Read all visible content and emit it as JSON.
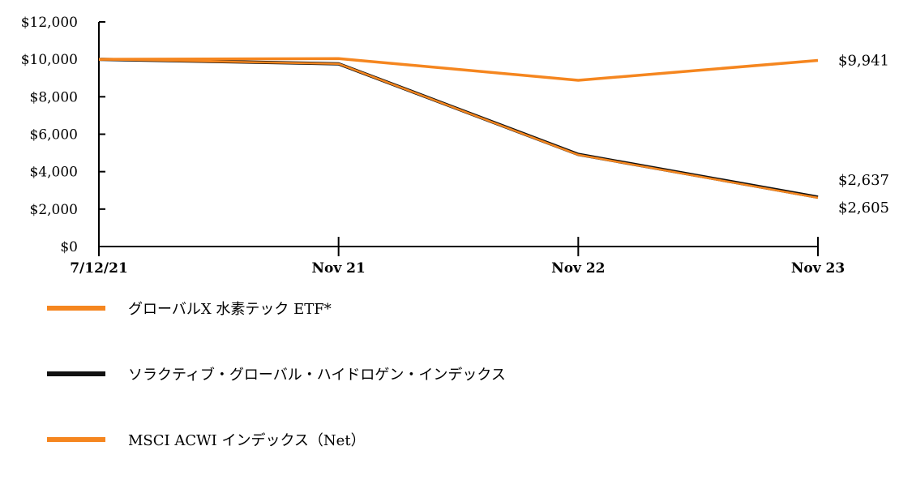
{
  "chart_data": {
    "type": "line",
    "x": [
      "7/12/21",
      "Nov 21",
      "Nov 22",
      "Nov 23"
    ],
    "ylim": [
      0,
      12000
    ],
    "yticks": [
      "$0",
      "$2,000",
      "$4,000",
      "$6,000",
      "$8,000",
      "$10,000",
      "$12,000"
    ],
    "ytick_values": [
      0,
      2000,
      4000,
      6000,
      8000,
      10000,
      12000
    ],
    "series": [
      {
        "name": "グローバルX  水素テック  ETF*",
        "values": [
          10000,
          9760,
          4900,
          2605
        ],
        "color": "#f5861f",
        "end_label": "$2,605"
      },
      {
        "name": "ソラクティブ・グローバル・ハイドロゲン・インデックス",
        "values": [
          10000,
          9760,
          4920,
          2637
        ],
        "color": "#111111",
        "end_label": "$2,637"
      },
      {
        "name": "MSCI ACWI インデックス（Net）",
        "values": [
          10000,
          10040,
          8880,
          9941
        ],
        "color": "#f5861f",
        "end_label": "$9,941"
      }
    ],
    "grid": false,
    "legend_position": "bottom"
  }
}
